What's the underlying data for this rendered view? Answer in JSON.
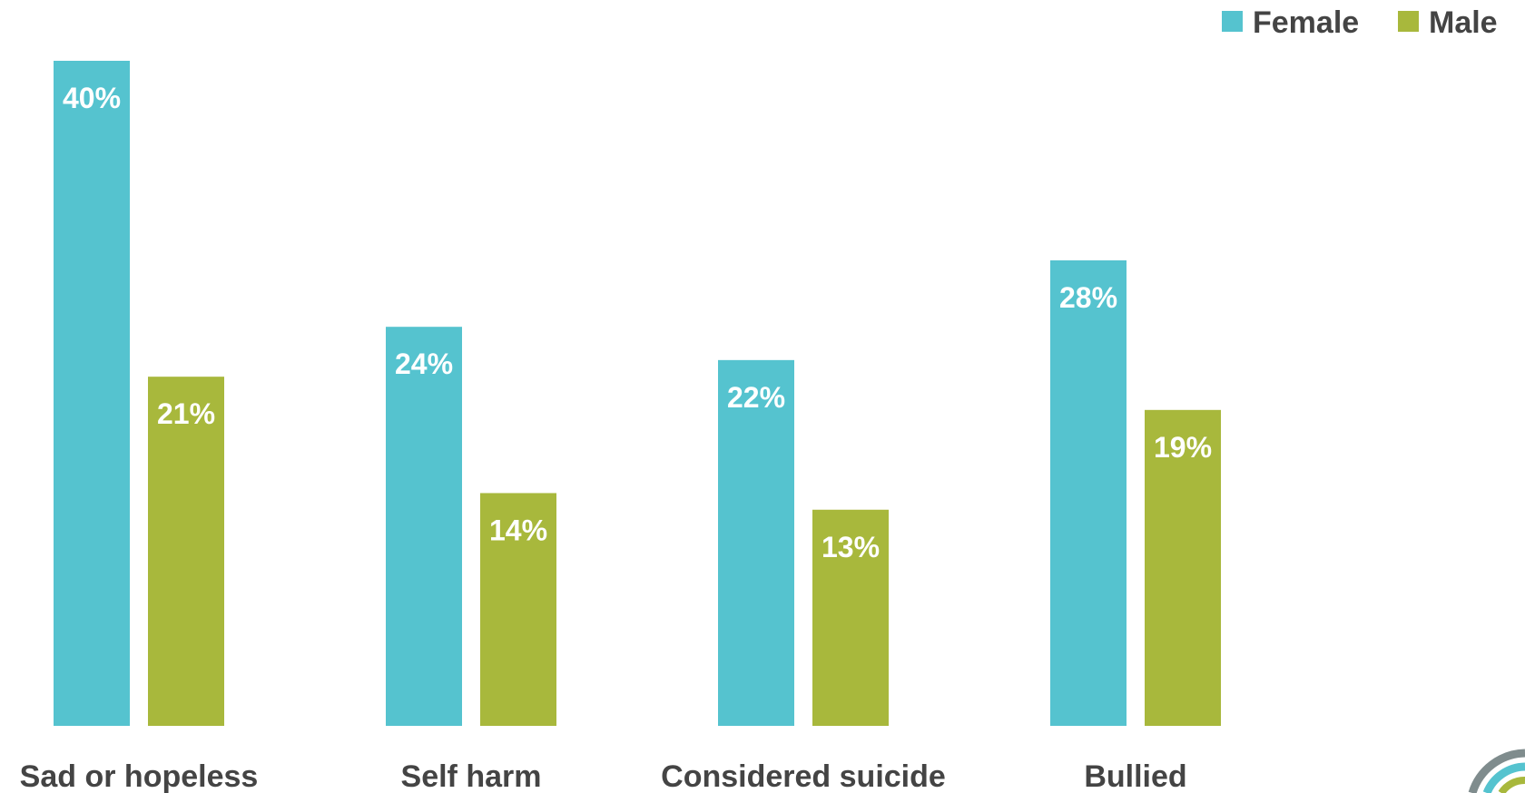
{
  "chart_data": {
    "type": "bar",
    "categories": [
      "Sad or hopeless",
      "Self harm",
      "Considered suicide",
      "Bullied"
    ],
    "series": [
      {
        "name": "Female",
        "color": "#55C3CF",
        "values": [
          40,
          24,
          22,
          28
        ],
        "labels": [
          "40%",
          "24%",
          "22%",
          "28%"
        ]
      },
      {
        "name": "Male",
        "color": "#A8B83C",
        "values": [
          21,
          14,
          13,
          19
        ],
        "labels": [
          "21%",
          "14%",
          "13%",
          "19%"
        ]
      }
    ],
    "ylim": [
      0,
      40
    ],
    "grid": false,
    "legend_position": "top-right",
    "title": "",
    "xlabel": "",
    "ylabel": ""
  },
  "colors": {
    "text": "#444444",
    "logo_teal": "#55C3CF",
    "logo_green": "#A8B83C",
    "logo_gray": "#7F8C8D"
  },
  "icons": {
    "logo": "partial-circle-logo-icon"
  }
}
